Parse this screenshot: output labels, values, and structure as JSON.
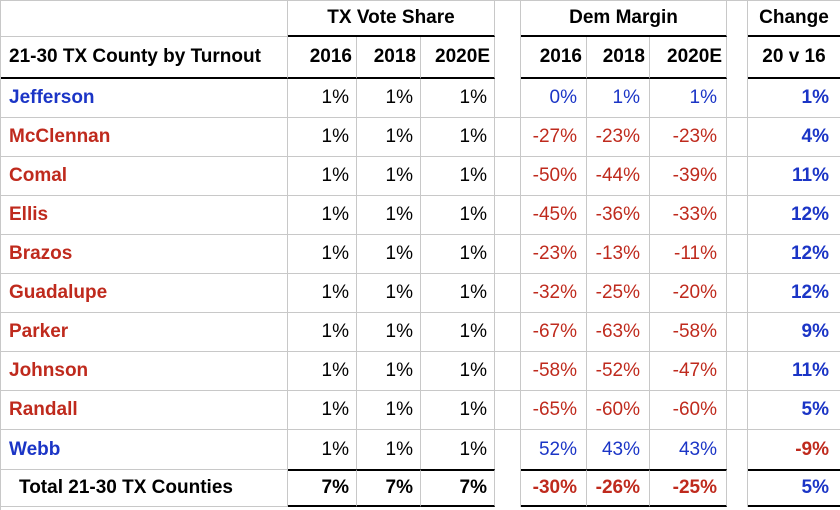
{
  "table": {
    "group_headers": {
      "vote_share": "TX Vote Share",
      "dem_margin": "Dem Margin",
      "change": "Change"
    },
    "column_headers": {
      "county": "21-30 TX County by Turnout",
      "vs_years": [
        "2016",
        "2018",
        "2020E"
      ],
      "dm_years": [
        "2016",
        "2018",
        "2020E"
      ],
      "change": "20 v 16"
    },
    "rows": [
      {
        "county": "Jefferson",
        "vs": [
          "1%",
          "1%",
          "1%"
        ],
        "dm": [
          "0%",
          "1%",
          "1%"
        ],
        "change": "1%"
      },
      {
        "county": "McClennan",
        "vs": [
          "1%",
          "1%",
          "1%"
        ],
        "dm": [
          "-27%",
          "-23%",
          "-23%"
        ],
        "change": "4%"
      },
      {
        "county": "Comal",
        "vs": [
          "1%",
          "1%",
          "1%"
        ],
        "dm": [
          "-50%",
          "-44%",
          "-39%"
        ],
        "change": "11%"
      },
      {
        "county": "Ellis",
        "vs": [
          "1%",
          "1%",
          "1%"
        ],
        "dm": [
          "-45%",
          "-36%",
          "-33%"
        ],
        "change": "12%"
      },
      {
        "county": "Brazos",
        "vs": [
          "1%",
          "1%",
          "1%"
        ],
        "dm": [
          "-23%",
          "-13%",
          "-11%"
        ],
        "change": "12%"
      },
      {
        "county": "Guadalupe",
        "vs": [
          "1%",
          "1%",
          "1%"
        ],
        "dm": [
          "-32%",
          "-25%",
          "-20%"
        ],
        "change": "12%"
      },
      {
        "county": "Parker",
        "vs": [
          "1%",
          "1%",
          "1%"
        ],
        "dm": [
          "-67%",
          "-63%",
          "-58%"
        ],
        "change": "9%"
      },
      {
        "county": "Johnson",
        "vs": [
          "1%",
          "1%",
          "1%"
        ],
        "dm": [
          "-58%",
          "-52%",
          "-47%"
        ],
        "change": "11%"
      },
      {
        "county": "Randall",
        "vs": [
          "1%",
          "1%",
          "1%"
        ],
        "dm": [
          "-65%",
          "-60%",
          "-60%"
        ],
        "change": "5%"
      },
      {
        "county": "Webb",
        "vs": [
          "1%",
          "1%",
          "1%"
        ],
        "dm": [
          "52%",
          "43%",
          "43%"
        ],
        "change": "-9%"
      }
    ],
    "total": {
      "label": "Total 21-30 TX Counties",
      "vs": [
        "7%",
        "7%",
        "7%"
      ],
      "dm": [
        "-30%",
        "-26%",
        "-25%"
      ],
      "change": "5%"
    }
  },
  "colors": {
    "dem_blue": "#1b35c6",
    "rep_red": "#bf2a1d",
    "grid_gray": "#c8c8c8",
    "border_black": "#000000"
  }
}
